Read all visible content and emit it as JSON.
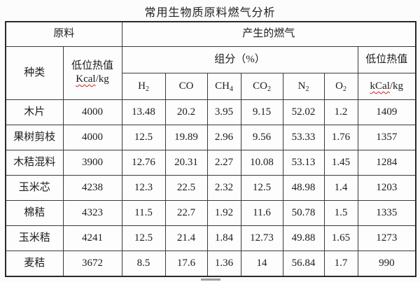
{
  "page": {
    "title": "常用生物质原料燃气分析"
  },
  "table": {
    "header": {
      "raw_material": "原料",
      "produced_gas": "产生的燃气",
      "type": "种类",
      "material_lhv_label": "低位热值",
      "material_lhv_unit_wavy": "Kcal",
      "material_lhv_unit_rest": "/kg",
      "composition": "组分（%）",
      "gas_lhv_label": "低位热值",
      "gas_lhv_unit_wavy": "kCal",
      "gas_lhv_unit_rest": "/kg",
      "gases": [
        {
          "base": "H",
          "sub": "2"
        },
        {
          "base": "CO",
          "sub": ""
        },
        {
          "base": "CH",
          "sub": "4"
        },
        {
          "base": "CO",
          "sub": "2"
        },
        {
          "base": "N",
          "sub": "2"
        },
        {
          "base": "O",
          "sub": "2"
        }
      ]
    },
    "column_keys": [
      "type",
      "material-lhv",
      "h2",
      "co",
      "ch4",
      "co2",
      "n2",
      "o2",
      "gas-lhv"
    ],
    "rows": [
      [
        "木片",
        "4000",
        "13.48",
        "20.2",
        "3.95",
        "9.15",
        "52.02",
        "1.2",
        "1409"
      ],
      [
        "果树剪枝",
        "4000",
        "12.5",
        "19.89",
        "2.96",
        "9.56",
        "53.33",
        "1.76",
        "1357"
      ],
      [
        "木秸混料",
        "3900",
        "12.76",
        "20.31",
        "2.27",
        "10.08",
        "53.13",
        "1.45",
        "1284"
      ],
      [
        "玉米芯",
        "4238",
        "12.3",
        "22.5",
        "2.32",
        "12.5",
        "48.98",
        "1.4",
        "1203"
      ],
      [
        "棉秸",
        "4323",
        "11.5",
        "22.7",
        "1.92",
        "11.6",
        "50.78",
        "1.5",
        "1335"
      ],
      [
        "玉米秸",
        "4241",
        "12.5",
        "21.4",
        "1.84",
        "12.73",
        "49.88",
        "1.65",
        "1273"
      ],
      [
        "麦秸",
        "3672",
        "8.5",
        "17.6",
        "1.36",
        "14",
        "56.84",
        "1.7",
        "990"
      ]
    ]
  }
}
